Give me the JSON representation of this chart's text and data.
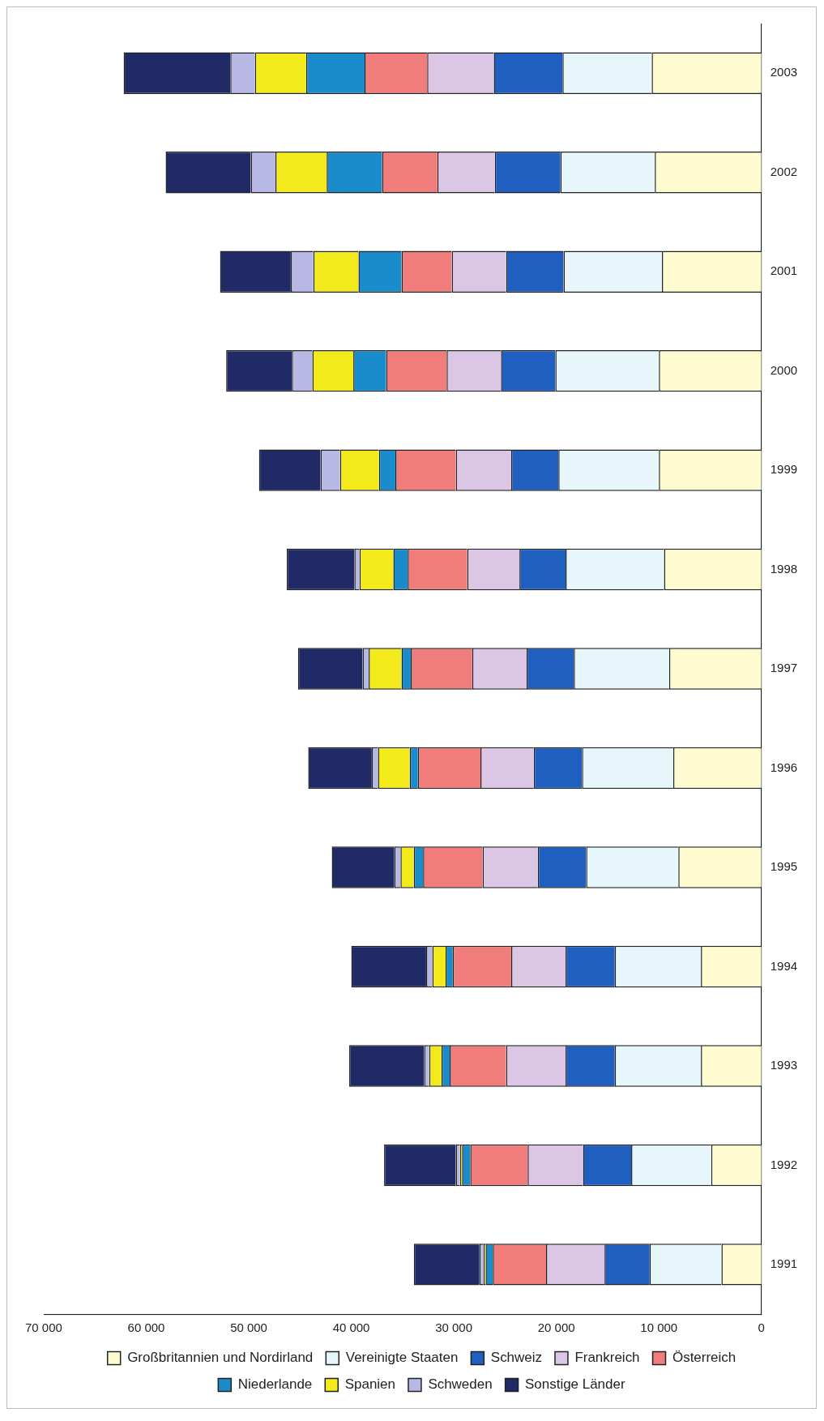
{
  "chart_data": {
    "type": "bar",
    "orientation": "horizontal",
    "stacked": true,
    "grid": false,
    "legend": "bottom",
    "categories": [
      "2003",
      "2002",
      "2001",
      "2000",
      "1999",
      "1998",
      "1997",
      "1996",
      "1995",
      "1994",
      "1993",
      "1992",
      "1991"
    ],
    "xlim": [
      70000,
      0
    ],
    "xticks": [
      {
        "value": 0,
        "label": "0"
      },
      {
        "value": 10000,
        "label": "10 000"
      },
      {
        "value": 20000,
        "label": "20 000"
      },
      {
        "value": 30000,
        "label": "30 000"
      },
      {
        "value": 40000,
        "label": "40 000"
      },
      {
        "value": 50000,
        "label": "50 000"
      },
      {
        "value": 60000,
        "label": "60 000"
      },
      {
        "value": 70000,
        "label": "70 000"
      }
    ],
    "series": [
      {
        "name": "Großbritannien und Nordirland",
        "color": "#fffbd0",
        "values": [
          10700,
          10400,
          9700,
          10000,
          10000,
          9500,
          9000,
          8600,
          8100,
          5900,
          5900,
          4900,
          3900
        ]
      },
      {
        "name": "Vereinigte Staaten",
        "color": "#e6f6fa",
        "values": [
          8700,
          9200,
          9600,
          10100,
          9800,
          9600,
          9300,
          8900,
          9000,
          8400,
          8400,
          7800,
          7000
        ]
      },
      {
        "name": "Schweiz",
        "color": "#1f5fc0",
        "values": [
          6700,
          6400,
          5600,
          5300,
          4600,
          4500,
          4600,
          4700,
          4700,
          4800,
          4800,
          4700,
          4400
        ]
      },
      {
        "name": "Frankreich",
        "color": "#dcc6e6",
        "values": [
          6500,
          5600,
          5300,
          5300,
          5400,
          5100,
          5300,
          5200,
          5400,
          5300,
          5800,
          5400,
          5700
        ]
      },
      {
        "name": "Österreich",
        "color": "#f07c7c",
        "values": [
          6100,
          5400,
          4900,
          5900,
          5900,
          5800,
          6000,
          6100,
          5800,
          5700,
          5500,
          5600,
          5200
        ]
      },
      {
        "name": "Niederlande",
        "color": "#1a8ccc",
        "values": [
          5700,
          5400,
          4200,
          3200,
          1600,
          1400,
          900,
          800,
          900,
          700,
          800,
          800,
          700
        ]
      },
      {
        "name": "Spanien",
        "color": "#f2ea1a",
        "values": [
          5000,
          5000,
          4400,
          4000,
          3800,
          3300,
          3200,
          3100,
          1300,
          1300,
          1200,
          200,
          200
        ]
      },
      {
        "name": "Schweden",
        "color": "#b8b8e4",
        "values": [
          2400,
          2400,
          2200,
          2000,
          1900,
          500,
          600,
          600,
          600,
          600,
          500,
          400,
          400
        ]
      },
      {
        "name": "Sonstige Länder",
        "color": "#1f2a66",
        "values": [
          10400,
          8300,
          6900,
          6400,
          6000,
          6600,
          6300,
          6200,
          6100,
          7300,
          7300,
          7000,
          6400
        ]
      }
    ]
  }
}
